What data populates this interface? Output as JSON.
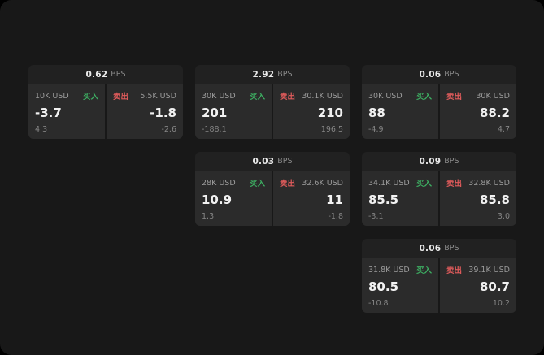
{
  "cards": [
    {
      "bps_value": "0.62",
      "bps_unit": "BPS",
      "buy": {
        "amount": "10K USD",
        "label": "买入",
        "price": "-3.7",
        "delta": "4.3"
      },
      "sell": {
        "label": "卖出",
        "amount": "5.5K USD",
        "price": "-1.8",
        "delta": "-2.6"
      },
      "grid": {
        "col": 1,
        "row": 1
      }
    },
    {
      "bps_value": "2.92",
      "bps_unit": "BPS",
      "buy": {
        "amount": "30K USD",
        "label": "买入",
        "price": "201",
        "delta": "-188.1"
      },
      "sell": {
        "label": "卖出",
        "amount": "30.1K USD",
        "price": "210",
        "delta": "196.5"
      },
      "grid": {
        "col": 2,
        "row": 1
      }
    },
    {
      "bps_value": "0.06",
      "bps_unit": "BPS",
      "buy": {
        "amount": "30K USD",
        "label": "买入",
        "price": "88",
        "delta": "-4.9"
      },
      "sell": {
        "label": "卖出",
        "amount": "30K USD",
        "price": "88.2",
        "delta": "4.7"
      },
      "grid": {
        "col": 3,
        "row": 1
      }
    },
    {
      "bps_value": "0.03",
      "bps_unit": "BPS",
      "buy": {
        "amount": "28K USD",
        "label": "买入",
        "price": "10.9",
        "delta": "1.3"
      },
      "sell": {
        "label": "卖出",
        "amount": "32.6K USD",
        "price": "11",
        "delta": "-1.8"
      },
      "grid": {
        "col": 2,
        "row": 2
      }
    },
    {
      "bps_value": "0.09",
      "bps_unit": "BPS",
      "buy": {
        "amount": "34.1K USD",
        "label": "买入",
        "price": "85.5",
        "delta": "-3.1"
      },
      "sell": {
        "label": "卖出",
        "amount": "32.8K USD",
        "price": "85.8",
        "delta": "3.0"
      },
      "grid": {
        "col": 3,
        "row": 2
      }
    },
    {
      "bps_value": "0.06",
      "bps_unit": "BPS",
      "buy": {
        "amount": "31.8K USD",
        "label": "买入",
        "price": "80.5",
        "delta": "-10.8"
      },
      "sell": {
        "label": "卖出",
        "amount": "39.1K USD",
        "price": "80.7",
        "delta": "10.2"
      },
      "grid": {
        "col": 3,
        "row": 3
      }
    }
  ],
  "colors": {
    "background": "#181818",
    "card_header": "#212121",
    "panel": "#2b2b2b",
    "buy_green": "#3dae62",
    "sell_red": "#e05b5b"
  }
}
